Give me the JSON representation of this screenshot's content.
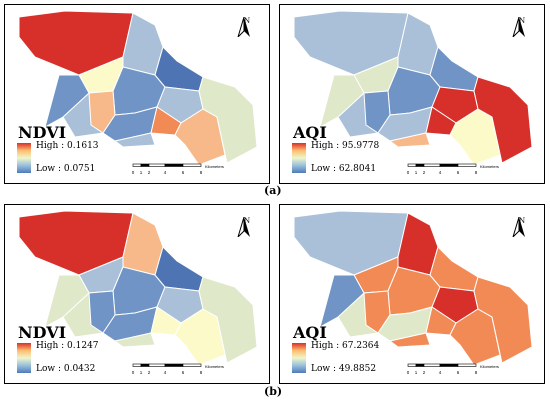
{
  "panels": [
    {
      "title": "NDVI",
      "high": "High : 0.1613",
      "low": "Low : 0.0751"
    },
    {
      "title": "AQI",
      "high": "High : 95.9778",
      "low": "Low : 62.8041"
    },
    {
      "title": "NDVI",
      "high": "High : 0.1247",
      "low": "Low : 0.0432"
    },
    {
      "title": "AQI",
      "high": "High : 67.2364",
      "low": "Low : 49.8852"
    }
  ],
  "north_label": "N",
  "scale": {
    "ticks": [
      "0",
      "1",
      "2",
      "4",
      "6",
      "8"
    ],
    "unit": "Kilometers"
  },
  "captions": {
    "a": "(a)",
    "b": "(b)"
  },
  "colors": {
    "red": "#d7302a",
    "orange": "#f28a56",
    "peach": "#f7b98a",
    "yellow": "#fbfac8",
    "pale": "#dfe8c8",
    "lightblue": "#a9c0d8",
    "blue": "#6f94c5",
    "darkblue": "#4e74b4"
  },
  "fills": [
    [
      "red",
      "lightblue",
      "yellow",
      "lightblue",
      "blue",
      "darkblue",
      "blue",
      "peach",
      "lightblue",
      "blue",
      "orange",
      "lightblue",
      "peach",
      "pale"
    ],
    [
      "lightblue",
      "lightblue",
      "pale",
      "lightblue",
      "blue",
      "blue",
      "pale",
      "blue",
      "red",
      "lightblue",
      "red",
      "peach",
      "yellow",
      "red"
    ],
    [
      "red",
      "peach",
      "lightblue",
      "pale",
      "blue",
      "darkblue",
      "pale",
      "blue",
      "lightblue",
      "blue",
      "yellow",
      "pale",
      "yellow",
      "pale"
    ],
    [
      "lightblue",
      "red",
      "orange",
      "pale",
      "orange",
      "orange",
      "blue",
      "orange",
      "red",
      "pale",
      "orange",
      "orange",
      "orange",
      "orange"
    ]
  ]
}
